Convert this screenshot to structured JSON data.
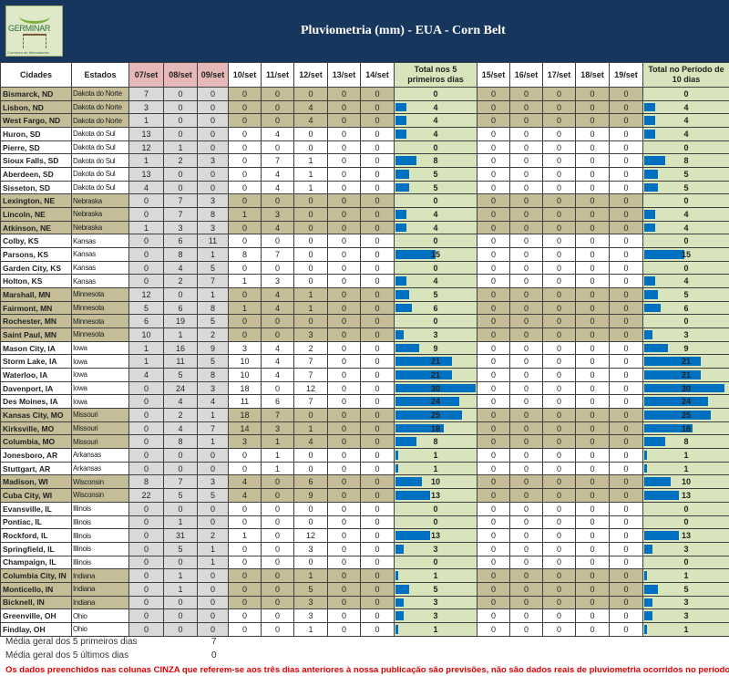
{
  "header": {
    "title": "Pluviometria (mm) - EUA - Corn Belt",
    "logo_text": "GERMINAR",
    "logo_subtitle": "Corretora de Mercadorias"
  },
  "columns": [
    "Cidades",
    "Estados",
    "07/set",
    "08/set",
    "09/set",
    "10/set",
    "11/set",
    "12/set",
    "13/set",
    "14/set",
    "Total nos 5 primeiros dias",
    "15/set",
    "16/set",
    "17/set",
    "18/set",
    "19/set",
    "Total no Período de 10 dias"
  ],
  "colors": {
    "banner": "#17365d",
    "forecast_header": "#e6b8b7",
    "forecast_cells": "#d9d9d9",
    "total_cells": "#d8e4bc",
    "bar": "#0070c0",
    "shaded_rows": "#c4bd97",
    "note": "#e00000"
  },
  "shaded_states": [
    "Dakota do Norte",
    "Nebraska",
    "Minnesota",
    "Missouri",
    "Wisconsin",
    "Indiana"
  ],
  "bar_max": 30,
  "rows": [
    [
      "Bismarck, ND",
      "Dakota do Norte",
      7,
      0,
      0,
      0,
      0,
      0,
      0,
      0,
      0,
      0,
      0,
      0,
      0,
      0,
      0
    ],
    [
      "Lisbon, ND",
      "Dakota do Norte",
      3,
      0,
      0,
      0,
      0,
      4,
      0,
      0,
      4,
      0,
      0,
      0,
      0,
      0,
      4
    ],
    [
      "West Fargo, ND",
      "Dakota do Norte",
      1,
      0,
      0,
      0,
      0,
      4,
      0,
      0,
      4,
      0,
      0,
      0,
      0,
      0,
      4
    ],
    [
      "Huron, SD",
      "Dakota do Sul",
      13,
      0,
      0,
      0,
      4,
      0,
      0,
      0,
      4,
      0,
      0,
      0,
      0,
      0,
      4
    ],
    [
      "Pierre, SD",
      "Dakota do Sul",
      12,
      1,
      0,
      0,
      0,
      0,
      0,
      0,
      0,
      0,
      0,
      0,
      0,
      0,
      0
    ],
    [
      "Sioux Falls, SD",
      "Dakota do Sul",
      1,
      2,
      3,
      0,
      7,
      1,
      0,
      0,
      8,
      0,
      0,
      0,
      0,
      0,
      8
    ],
    [
      "Aberdeen, SD",
      "Dakota do Sul",
      13,
      0,
      0,
      0,
      4,
      1,
      0,
      0,
      5,
      0,
      0,
      0,
      0,
      0,
      5
    ],
    [
      "Sisseton, SD",
      "Dakota do Sul",
      4,
      0,
      0,
      0,
      4,
      1,
      0,
      0,
      5,
      0,
      0,
      0,
      0,
      0,
      5
    ],
    [
      "Lexington, NE",
      "Nebraska",
      0,
      7,
      3,
      0,
      0,
      0,
      0,
      0,
      0,
      0,
      0,
      0,
      0,
      0,
      0
    ],
    [
      "Lincoln, NE",
      "Nebraska",
      0,
      7,
      8,
      1,
      3,
      0,
      0,
      0,
      4,
      0,
      0,
      0,
      0,
      0,
      4
    ],
    [
      "Atkinson, NE",
      "Nebraska",
      1,
      3,
      3,
      0,
      4,
      0,
      0,
      0,
      4,
      0,
      0,
      0,
      0,
      0,
      4
    ],
    [
      "Colby, KS",
      "Kansas",
      0,
      6,
      11,
      0,
      0,
      0,
      0,
      0,
      0,
      0,
      0,
      0,
      0,
      0,
      0
    ],
    [
      "Parsons, KS",
      "Kansas",
      0,
      8,
      1,
      8,
      7,
      0,
      0,
      0,
      15,
      0,
      0,
      0,
      0,
      0,
      15
    ],
    [
      "Garden City, KS",
      "Kansas",
      0,
      4,
      5,
      0,
      0,
      0,
      0,
      0,
      0,
      0,
      0,
      0,
      0,
      0,
      0
    ],
    [
      "Holton, KS",
      "Kansas",
      0,
      2,
      7,
      1,
      3,
      0,
      0,
      0,
      4,
      0,
      0,
      0,
      0,
      0,
      4
    ],
    [
      "Marshall, MN",
      "Minnesota",
      12,
      0,
      1,
      0,
      4,
      1,
      0,
      0,
      5,
      0,
      0,
      0,
      0,
      0,
      5
    ],
    [
      "Fairmont, MN",
      "Minnesota",
      5,
      6,
      8,
      1,
      4,
      1,
      0,
      0,
      6,
      0,
      0,
      0,
      0,
      0,
      6
    ],
    [
      "Rochester, MN",
      "Minnesota",
      6,
      19,
      5,
      0,
      0,
      0,
      0,
      0,
      0,
      0,
      0,
      0,
      0,
      0,
      0
    ],
    [
      "Saint Paul, MN",
      "Minnesota",
      10,
      1,
      2,
      0,
      0,
      3,
      0,
      0,
      3,
      0,
      0,
      0,
      0,
      0,
      3
    ],
    [
      "Mason City, IA",
      "Iowa",
      1,
      16,
      9,
      3,
      4,
      2,
      0,
      0,
      9,
      0,
      0,
      0,
      0,
      0,
      9
    ],
    [
      "Storm Lake, IA",
      "Iowa",
      1,
      11,
      5,
      10,
      4,
      7,
      0,
      0,
      21,
      0,
      0,
      0,
      0,
      0,
      21
    ],
    [
      "Waterloo, IA",
      "Iowa",
      4,
      5,
      8,
      10,
      4,
      7,
      0,
      0,
      21,
      0,
      0,
      0,
      0,
      0,
      21
    ],
    [
      "Davenport, IA",
      "Iowa",
      0,
      24,
      3,
      18,
      0,
      12,
      0,
      0,
      30,
      0,
      0,
      0,
      0,
      0,
      30
    ],
    [
      "Des Moines, IA",
      "Iowa",
      0,
      4,
      4,
      11,
      6,
      7,
      0,
      0,
      24,
      0,
      0,
      0,
      0,
      0,
      24
    ],
    [
      "Kansas City, MO",
      "Missouri",
      0,
      2,
      1,
      18,
      7,
      0,
      0,
      0,
      25,
      0,
      0,
      0,
      0,
      0,
      25
    ],
    [
      "Kirksville, MO",
      "Missouri",
      0,
      4,
      7,
      14,
      3,
      1,
      0,
      0,
      18,
      0,
      0,
      0,
      0,
      0,
      18
    ],
    [
      "Columbia, MO",
      "Missouri",
      0,
      8,
      1,
      3,
      1,
      4,
      0,
      0,
      8,
      0,
      0,
      0,
      0,
      0,
      8
    ],
    [
      "Jonesboro, AR",
      "Arkansas",
      0,
      0,
      0,
      0,
      1,
      0,
      0,
      0,
      1,
      0,
      0,
      0,
      0,
      0,
      1
    ],
    [
      "Stuttgart, AR",
      "Arkansas",
      0,
      0,
      0,
      0,
      1,
      0,
      0,
      0,
      1,
      0,
      0,
      0,
      0,
      0,
      1
    ],
    [
      "Madison, WI",
      "Wisconsin",
      8,
      7,
      3,
      4,
      0,
      6,
      0,
      0,
      10,
      0,
      0,
      0,
      0,
      0,
      10
    ],
    [
      "Cuba City, WI",
      "Wisconsin",
      22,
      5,
      5,
      4,
      0,
      9,
      0,
      0,
      13,
      0,
      0,
      0,
      0,
      0,
      13
    ],
    [
      "Evansville, IL",
      "Illinois",
      0,
      0,
      0,
      0,
      0,
      0,
      0,
      0,
      0,
      0,
      0,
      0,
      0,
      0,
      0
    ],
    [
      "Pontiac, IL",
      "Illinois",
      0,
      1,
      0,
      0,
      0,
      0,
      0,
      0,
      0,
      0,
      0,
      0,
      0,
      0,
      0
    ],
    [
      "Rockford, IL",
      "Illinois",
      0,
      31,
      2,
      1,
      0,
      12,
      0,
      0,
      13,
      0,
      0,
      0,
      0,
      0,
      13
    ],
    [
      "Springfield, IL",
      "Illinois",
      0,
      5,
      1,
      0,
      0,
      3,
      0,
      0,
      3,
      0,
      0,
      0,
      0,
      0,
      3
    ],
    [
      "Champaign, IL",
      "Illinois",
      0,
      0,
      1,
      0,
      0,
      0,
      0,
      0,
      0,
      0,
      0,
      0,
      0,
      0,
      0
    ],
    [
      "Columbia City, IN",
      "Indiana",
      0,
      1,
      0,
      0,
      0,
      1,
      0,
      0,
      1,
      0,
      0,
      0,
      0,
      0,
      1
    ],
    [
      "Monticello, IN",
      "Indiana",
      0,
      1,
      0,
      0,
      0,
      5,
      0,
      0,
      5,
      0,
      0,
      0,
      0,
      0,
      5
    ],
    [
      "Bicknell, IN",
      "Indiana",
      0,
      0,
      0,
      0,
      0,
      3,
      0,
      0,
      3,
      0,
      0,
      0,
      0,
      0,
      3
    ],
    [
      "Greenville, OH",
      "Ohio",
      0,
      0,
      0,
      0,
      0,
      3,
      0,
      0,
      3,
      0,
      0,
      0,
      0,
      0,
      3
    ],
    [
      "Findlay, OH",
      "Ohio",
      0,
      0,
      0,
      0,
      0,
      1,
      0,
      0,
      1,
      0,
      0,
      0,
      0,
      0,
      1
    ]
  ],
  "footer": {
    "avg_first_label": "Média geral dos 5 primeiros dias",
    "avg_first_value": "7",
    "avg_last_label": "Média geral dos 5 últimos dias",
    "avg_last_value": "0",
    "note": "Os dados preenchidos nas colunas CINZA que referem-se aos três dias anteriores à nossa publicação são previsões, não são dados reais de pluviometria ocorridos no período."
  }
}
